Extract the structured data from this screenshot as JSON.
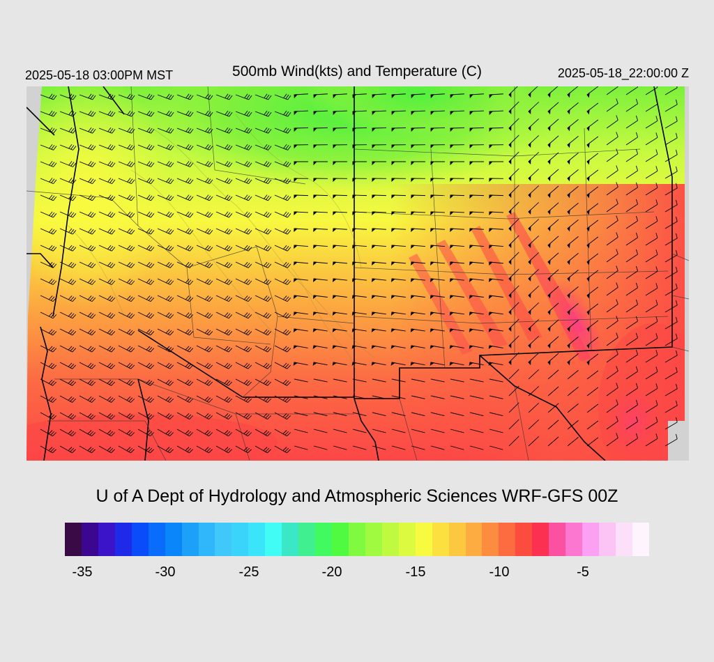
{
  "header": {
    "valid_local": "2025-05-18 03:00PM MST",
    "title": "500mb Wind(kts) and Temperature (C)",
    "valid_utc": "2025-05-18_22:00:00 Z"
  },
  "credit": "U of A Dept of Hydrology and Atmospheric Sciences WRF-GFS 00Z",
  "colorbar": {
    "colors": [
      "#3a0a46",
      "#3b0790",
      "#3b13c8",
      "#1e2ae8",
      "#0a4cfa",
      "#0a6cfa",
      "#0a86fa",
      "#1ca0f8",
      "#30b6fa",
      "#40c8fa",
      "#3ad4fa",
      "#3ae4fa",
      "#40fcf4",
      "#3ae8c8",
      "#40f090",
      "#40fa60",
      "#50fa40",
      "#80fa40",
      "#a0fa40",
      "#c0fa40",
      "#dcfa40",
      "#f8fa40",
      "#fce040",
      "#fcc840",
      "#fcac40",
      "#fc8c40",
      "#fc6c40",
      "#fc4c40",
      "#fc3050",
      "#fc50a0",
      "#fc78d0",
      "#fca0f4",
      "#fcc4f4",
      "#fce0fa",
      "#fdf4fd"
    ],
    "ticks": [
      "-35",
      "-30",
      "-25",
      "-20",
      "-15",
      "-10",
      "-5"
    ]
  },
  "map": {
    "temperature_colors": {
      "green": "#6ef03c",
      "yellow_green": "#c8fa40",
      "yellow": "#fafa40",
      "orange": "#fc8c40",
      "red": "#fc4646",
      "magenta": "#fc3c8c"
    },
    "land_outside": "#d0d0d0"
  }
}
